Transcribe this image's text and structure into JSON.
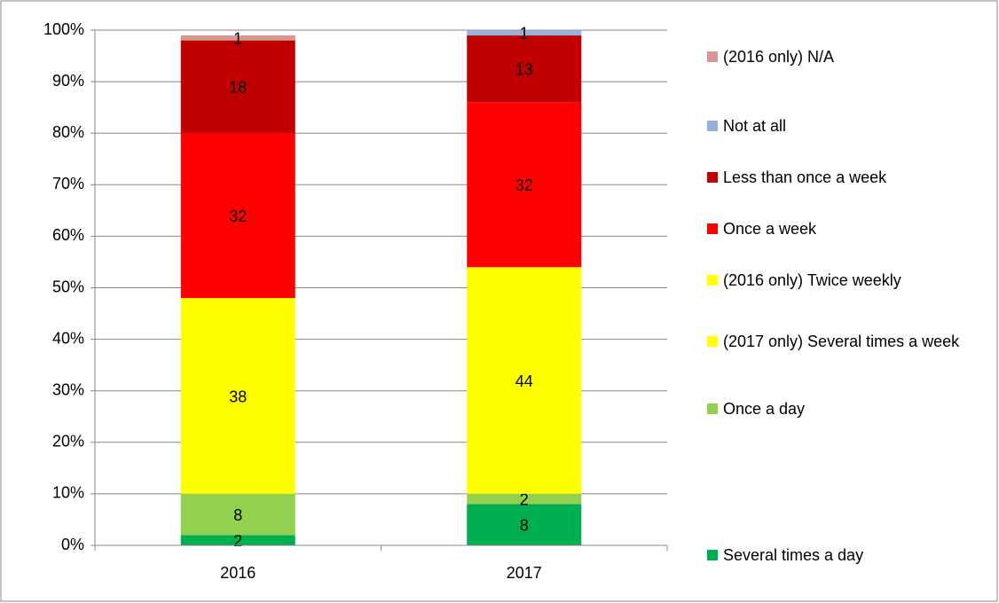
{
  "chart_data": {
    "type": "bar",
    "stacked": true,
    "categories": [
      "2016",
      "2017"
    ],
    "series": [
      {
        "name": "Several times a day",
        "color": "#00b050",
        "values": [
          2,
          8
        ]
      },
      {
        "name": "Once a day",
        "color": "#92d050",
        "values": [
          8,
          2
        ]
      },
      {
        "name": "(2017 only) Several times a week",
        "color": "#ffff00",
        "values": [
          null,
          44
        ]
      },
      {
        "name": "(2016 only) Twice weekly",
        "color": "#ffff00",
        "values": [
          38,
          null
        ]
      },
      {
        "name": "Once a week",
        "color": "#ff0000",
        "values": [
          32,
          32
        ]
      },
      {
        "name": "Less than once a week",
        "color": "#c00000",
        "values": [
          18,
          13
        ]
      },
      {
        "name": "Not at all",
        "color": "#95b3d7",
        "values": [
          null,
          1
        ]
      },
      {
        "name": "(2016 only) N/A",
        "color": "#d99694",
        "values": [
          1,
          null
        ]
      }
    ],
    "ylim": [
      0,
      100
    ],
    "yticks": [
      {
        "value": 0,
        "label": "0%"
      },
      {
        "value": 10,
        "label": "10%"
      },
      {
        "value": 20,
        "label": "20%"
      },
      {
        "value": 30,
        "label": "30%"
      },
      {
        "value": 40,
        "label": "40%"
      },
      {
        "value": 50,
        "label": "50%"
      },
      {
        "value": 60,
        "label": "60%"
      },
      {
        "value": 70,
        "label": "70%"
      },
      {
        "value": 80,
        "label": "80%"
      },
      {
        "value": 90,
        "label": "90%"
      },
      {
        "value": 100,
        "label": "100%"
      }
    ],
    "grid": true,
    "legend": "right"
  }
}
